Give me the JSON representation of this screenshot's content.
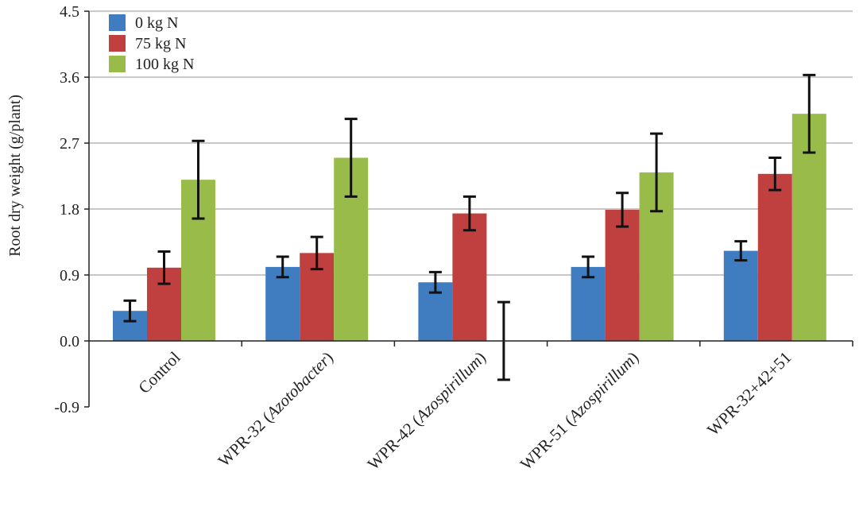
{
  "chart_data": {
    "type": "bar",
    "title": "",
    "xlabel": "",
    "ylabel": "Root dry weight (g/plant)",
    "ylim": [
      -0.9,
      4.5
    ],
    "yticks": [
      "-0.9",
      "0.0",
      "0.9",
      "1.8",
      "2.7",
      "3.6",
      "4.5"
    ],
    "grid": true,
    "legend_position": "top-left",
    "categories": [
      {
        "prefix": "Control",
        "italic": "",
        "suffix": ""
      },
      {
        "prefix": "WPR-32 (",
        "italic": "Azotobacter",
        "suffix": ")"
      },
      {
        "prefix": "WPR-42 (",
        "italic": "Azospirillum",
        "suffix": ")"
      },
      {
        "prefix": "WPR-51 (",
        "italic": "Azospirillum",
        "suffix": ")"
      },
      {
        "prefix": "WPR-32+42+51",
        "italic": "",
        "suffix": ""
      }
    ],
    "series": [
      {
        "name": "0 kg N",
        "color": "#3f7cc0",
        "values": [
          0.41,
          1.01,
          0.8,
          1.01,
          1.23
        ],
        "errors": [
          0.14,
          0.14,
          0.14,
          0.14,
          0.13
        ]
      },
      {
        "name": "75 kg N",
        "color": "#c0403f",
        "values": [
          1.0,
          1.2,
          1.74,
          1.79,
          2.28
        ],
        "errors": [
          0.22,
          0.22,
          0.23,
          0.23,
          0.22
        ]
      },
      {
        "name": "100 kg N",
        "color": "#98bb4a",
        "values": [
          2.2,
          2.5,
          0.0,
          2.3,
          3.1
        ],
        "errors": [
          0.53,
          0.53,
          0.53,
          0.53,
          0.53
        ]
      }
    ]
  }
}
